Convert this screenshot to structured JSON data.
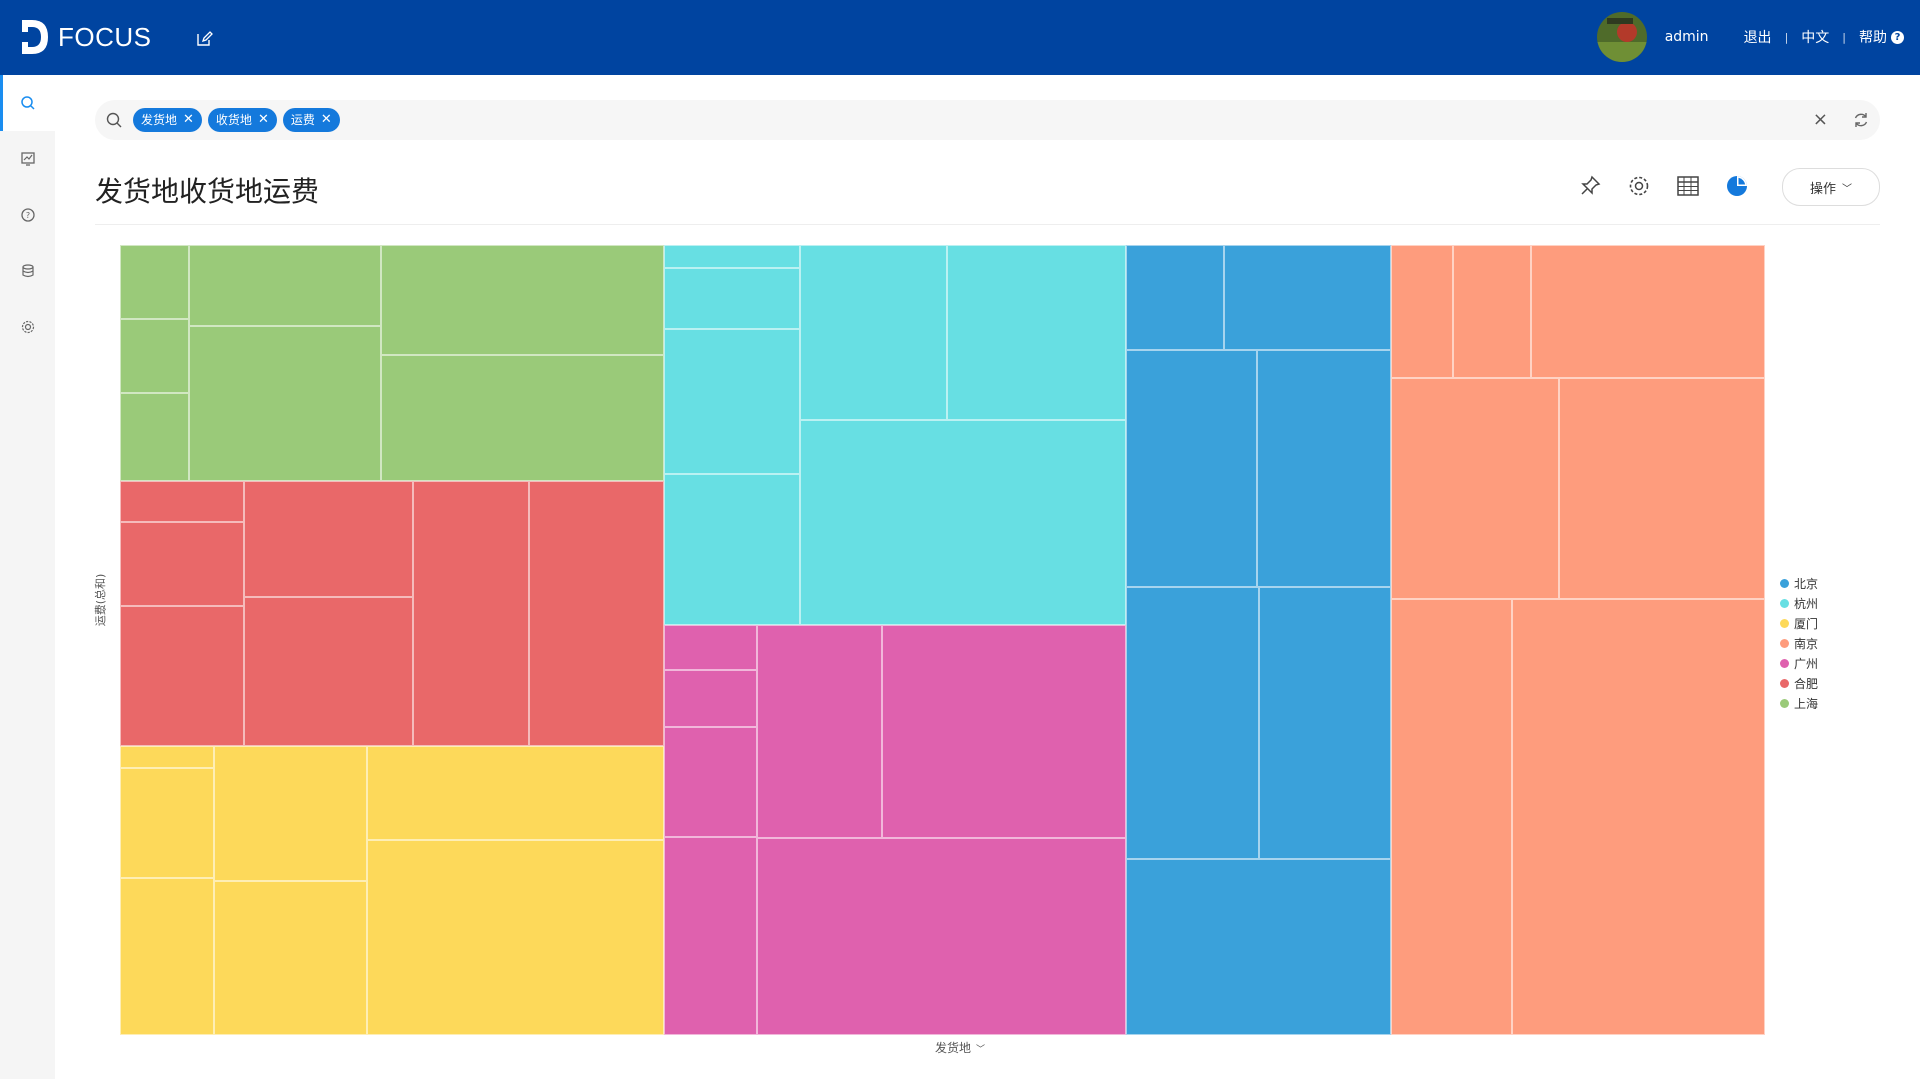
{
  "app": {
    "logo_text": "FOCUS",
    "user": "admin",
    "logout": "退出",
    "language": "中文",
    "help": "帮助"
  },
  "sidebar": {
    "items": [
      {
        "icon": "search-icon"
      },
      {
        "icon": "chart-board-icon"
      },
      {
        "icon": "help-circle-icon"
      },
      {
        "icon": "database-icon"
      },
      {
        "icon": "gear-icon"
      }
    ]
  },
  "search": {
    "tags": [
      "发货地",
      "收货地",
      "运费"
    ]
  },
  "page": {
    "title": "发货地收货地运费",
    "operate_label": "操作"
  },
  "colors": {
    "topbar": "#0044a0",
    "accent": "#1479dc"
  },
  "chart_data": {
    "type": "treemap",
    "xlabel": "发货地",
    "ylabel": "运费(总和)",
    "legend_position": "right",
    "series": [
      {
        "name": "北京",
        "color": "#3aa1da"
      },
      {
        "name": "杭州",
        "color": "#67dfe3"
      },
      {
        "name": "厦门",
        "color": "#fdd95a"
      },
      {
        "name": "南京",
        "color": "#fe9c7d"
      },
      {
        "name": "广州",
        "color": "#df61ae"
      },
      {
        "name": "合肥",
        "color": "#e96869"
      },
      {
        "name": "上海",
        "color": "#9aca79"
      }
    ]
  }
}
